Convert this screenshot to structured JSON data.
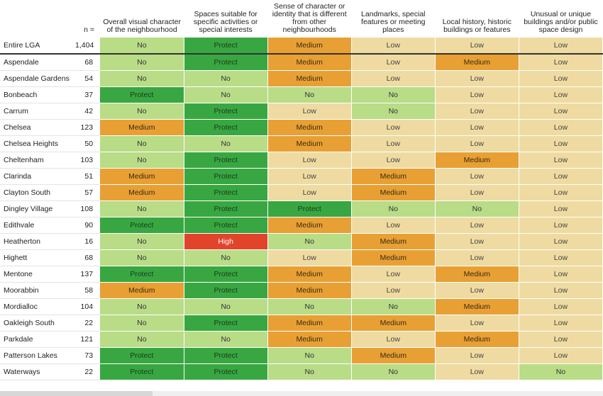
{
  "table": {
    "n_header": "n =",
    "columns": [
      "Overall visual character of the neighbourhood",
      "Spaces suitable for specific activities or special interests",
      "Sense of character or identity that is different from other neighbourhoods",
      "Landmarks, special features or meeting places",
      "Local history, historic buildings or features",
      "Unusual or unique buildings and/or public space design"
    ],
    "rows": [
      {
        "name": "Entire LGA",
        "n": "1,404",
        "values": [
          "No",
          "Protect",
          "Medium",
          "Low",
          "Low",
          "Low"
        ]
      },
      {
        "name": "Aspendale",
        "n": "68",
        "values": [
          "No",
          "Protect",
          "Medium",
          "Low",
          "Medium",
          "Low"
        ]
      },
      {
        "name": "Aspendale Gardens",
        "n": "54",
        "values": [
          "No",
          "No",
          "Medium",
          "Low",
          "Low",
          "Low"
        ]
      },
      {
        "name": "Bonbeach",
        "n": "37",
        "values": [
          "Protect",
          "No",
          "No",
          "No",
          "Low",
          "Low"
        ]
      },
      {
        "name": "Carrum",
        "n": "42",
        "values": [
          "No",
          "Protect",
          "Low",
          "No",
          "Low",
          "Low"
        ]
      },
      {
        "name": "Chelsea",
        "n": "123",
        "values": [
          "Medium",
          "Protect",
          "Medium",
          "Low",
          "Low",
          "Low"
        ]
      },
      {
        "name": "Chelsea Heights",
        "n": "50",
        "values": [
          "No",
          "No",
          "Medium",
          "Low",
          "Low",
          "Low"
        ]
      },
      {
        "name": "Cheltenham",
        "n": "103",
        "values": [
          "No",
          "Protect",
          "Low",
          "Low",
          "Medium",
          "Low"
        ]
      },
      {
        "name": "Clarinda",
        "n": "51",
        "values": [
          "Medium",
          "Protect",
          "Low",
          "Medium",
          "Low",
          "Low"
        ]
      },
      {
        "name": "Clayton South",
        "n": "57",
        "values": [
          "Medium",
          "Protect",
          "Low",
          "Medium",
          "Low",
          "Low"
        ]
      },
      {
        "name": "Dingley Village",
        "n": "108",
        "values": [
          "No",
          "Protect",
          "Protect",
          "No",
          "No",
          "Low"
        ]
      },
      {
        "name": "Edithvale",
        "n": "90",
        "values": [
          "Protect",
          "Protect",
          "Medium",
          "Low",
          "Low",
          "Low"
        ]
      },
      {
        "name": "Heatherton",
        "n": "16",
        "values": [
          "No",
          "High",
          "No",
          "Medium",
          "Low",
          "Low"
        ]
      },
      {
        "name": "Highett",
        "n": "68",
        "values": [
          "No",
          "No",
          "Low",
          "Medium",
          "Low",
          "Low"
        ]
      },
      {
        "name": "Mentone",
        "n": "137",
        "values": [
          "Protect",
          "Protect",
          "Medium",
          "Low",
          "Medium",
          "Low"
        ]
      },
      {
        "name": "Moorabbin",
        "n": "58",
        "values": [
          "Medium",
          "Protect",
          "Medium",
          "Low",
          "Low",
          "Low"
        ]
      },
      {
        "name": "Mordialloc",
        "n": "104",
        "values": [
          "No",
          "No",
          "No",
          "No",
          "Medium",
          "Low"
        ]
      },
      {
        "name": "Oakleigh South",
        "n": "22",
        "values": [
          "No",
          "Protect",
          "Medium",
          "Medium",
          "Low",
          "Low"
        ]
      },
      {
        "name": "Parkdale",
        "n": "121",
        "values": [
          "No",
          "No",
          "Medium",
          "Low",
          "Medium",
          "Low"
        ]
      },
      {
        "name": "Patterson Lakes",
        "n": "73",
        "values": [
          "Protect",
          "Protect",
          "No",
          "Medium",
          "Low",
          "Low"
        ]
      },
      {
        "name": "Waterways",
        "n": "22",
        "values": [
          "Protect",
          "Protect",
          "No",
          "No",
          "Low",
          "No"
        ]
      }
    ]
  },
  "colors": {
    "Protect": "#38a742",
    "High": "#e1442a",
    "Medium": "#e8a034",
    "Low": "#efdba1",
    "No": "#b9dc87"
  }
}
